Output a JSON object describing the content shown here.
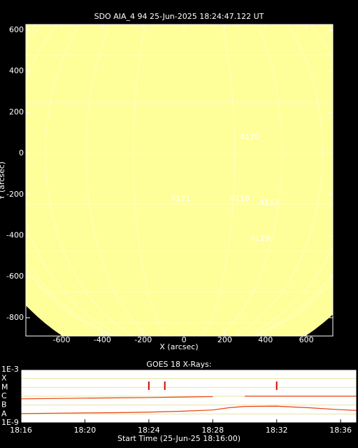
{
  "chart_data": [
    {
      "type": "image",
      "title": "SDO AIA_4 94 25-Jun-2025 18:24:47.122 UT",
      "xlabel": "X (arcsec)",
      "ylabel": "Y (arcsec)",
      "xlim": [
        -775,
        730
      ],
      "ylim": [
        -889,
        627
      ],
      "xticks": [
        -600,
        -400,
        -200,
        0,
        200,
        400,
        600
      ],
      "yticks": [
        -800,
        -600,
        -400,
        -200,
        0,
        200,
        400,
        600
      ],
      "color": "#ffff99",
      "annotations": [
        {
          "text": "4120",
          "x": 322,
          "y": 79
        },
        {
          "text": "4121",
          "x": -17,
          "y": -221
        },
        {
          "text": "4118",
          "x": 274,
          "y": -221
        },
        {
          "text": "4117",
          "x": 418,
          "y": -241
        },
        {
          "text": "4119",
          "x": 373,
          "y": -415
        }
      ]
    },
    {
      "type": "line",
      "title": "GOES 18 X-Rays:",
      "xlabel": "Start Time (25-Jun-25 18:16:00)",
      "log_scale": true,
      "ylim": [
        1e-09,
        0.001
      ],
      "yticks": [
        {
          "value": 0.001,
          "label": "1E-3"
        },
        {
          "value": 0.0001,
          "label": "X"
        },
        {
          "value": 1e-05,
          "label": "M"
        },
        {
          "value": 1e-06,
          "label": "C"
        },
        {
          "value": 1e-07,
          "label": "B"
        },
        {
          "value": 1e-08,
          "label": "A"
        },
        {
          "value": 1e-09,
          "label": "1E-9"
        }
      ],
      "xlim": [
        "18:16",
        "18:37"
      ],
      "xticks": [
        "18:16",
        "18:20",
        "18:24",
        "18:28",
        "18:32",
        "18:36"
      ],
      "grid": true,
      "x": [
        "18:16",
        "18:18",
        "18:20",
        "18:22",
        "18:24",
        "18:26",
        "18:28",
        "18:29",
        "18:30",
        "18:32",
        "18:34",
        "18:36",
        "18:37"
      ],
      "series": [
        {
          "color": "#e84010",
          "values": [
            5e-07,
            5.5e-07,
            6e-07,
            6.5e-07,
            7e-07,
            8e-07,
            9e-07,
            null,
            1e-06,
            1e-06,
            1e-06,
            1e-06,
            1e-06
          ]
        },
        {
          "color": "#e84010",
          "values": [
            1.1e-08,
            1.2e-08,
            1.3e-08,
            1.4e-08,
            1.6e-08,
            2e-08,
            2.8e-08,
            5e-08,
            7e-08,
            7.5e-08,
            5e-08,
            3e-08,
            2.5e-08
          ]
        }
      ],
      "events": [
        "18:24",
        "18:25",
        "18:32"
      ],
      "event_color": "#e00000"
    }
  ]
}
